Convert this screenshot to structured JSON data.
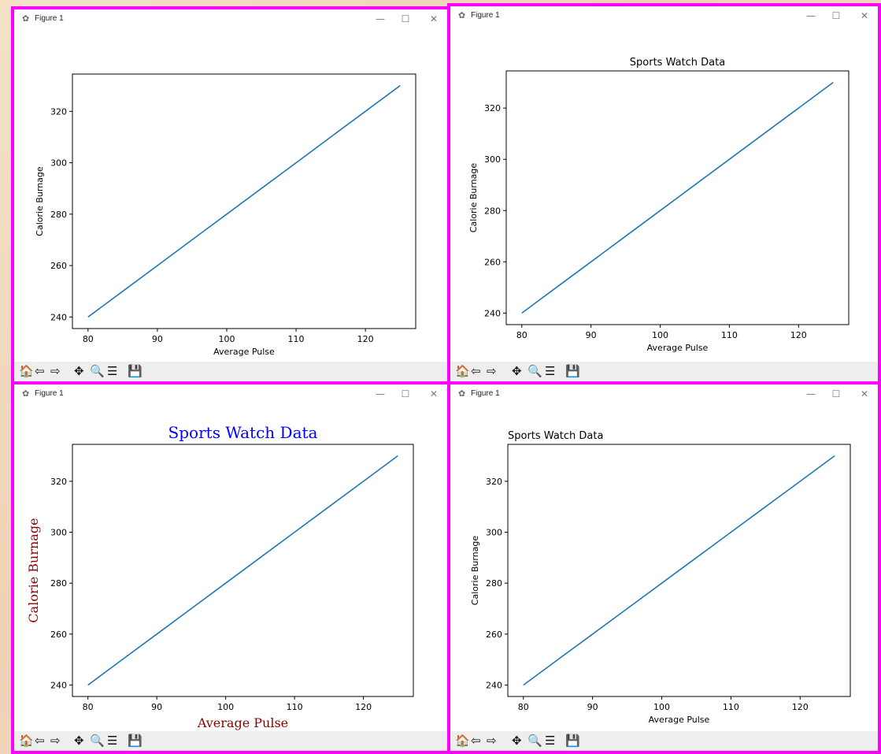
{
  "colors": {
    "frame": "#ff00ff",
    "line": "#1f77b4",
    "toolbar_bg": "#eeeeee",
    "title_blue": "#0000ff",
    "label_darkred": "#8b0000"
  },
  "icons": {
    "app": "matplotlib-figure-icon",
    "minimize": "minimize-icon",
    "maximize": "maximize-icon",
    "close": "close-icon",
    "toolbar": [
      "home-icon",
      "back-arrow-icon",
      "forward-arrow-icon",
      "pan-move-icon",
      "zoom-magnifier-icon",
      "configure-subplots-icon",
      "save-floppy-icon"
    ]
  },
  "windows": [
    {
      "title": "Figure 1",
      "controls": {
        "minimize": "—",
        "maximize": "☐",
        "close": "✕"
      },
      "toolbar": {
        "home": "🏠",
        "back": "⇦",
        "forward": "⇨",
        "pan": "✥",
        "zoom": "🔍",
        "config": "☰",
        "save": "💾"
      }
    },
    {
      "title": "Figure 1",
      "controls": {
        "minimize": "—",
        "maximize": "☐",
        "close": "✕"
      },
      "toolbar": {
        "home": "🏠",
        "back": "⇦",
        "forward": "⇨",
        "pan": "✥",
        "zoom": "🔍",
        "config": "☰",
        "save": "💾"
      }
    },
    {
      "title": "Figure 1",
      "controls": {
        "minimize": "—",
        "maximize": "☐",
        "close": "✕"
      },
      "toolbar": {
        "home": "🏠",
        "back": "⇦",
        "forward": "⇨",
        "pan": "✥",
        "zoom": "🔍",
        "config": "☰",
        "save": "💾"
      }
    },
    {
      "title": "Figure 1",
      "controls": {
        "minimize": "—",
        "maximize": "☐",
        "close": "✕"
      },
      "toolbar": {
        "home": "🏠",
        "back": "⇦",
        "forward": "⇨",
        "pan": "✥",
        "zoom": "🔍",
        "config": "☰",
        "save": "💾"
      }
    }
  ],
  "chart_data": [
    {
      "type": "line",
      "title": "",
      "xlabel": "Average Pulse",
      "ylabel": "Calorie Burnage",
      "x": [
        80,
        85,
        90,
        95,
        100,
        105,
        110,
        115,
        120,
        125
      ],
      "series": [
        {
          "values": [
            240,
            250,
            260,
            270,
            280,
            290,
            300,
            310,
            320,
            330
          ]
        }
      ],
      "xlim": [
        77.75,
        127.25
      ],
      "ylim": [
        235.5,
        334.5
      ],
      "xticks": [
        "80",
        "90",
        "100",
        "110",
        "120"
      ],
      "yticks": [
        "240",
        "260",
        "280",
        "300",
        "320"
      ],
      "title_align": "center",
      "style": "default",
      "grid": false
    },
    {
      "type": "line",
      "title": "Sports Watch Data",
      "xlabel": "Average Pulse",
      "ylabel": "Calorie Burnage",
      "x": [
        80,
        85,
        90,
        95,
        100,
        105,
        110,
        115,
        120,
        125
      ],
      "series": [
        {
          "values": [
            240,
            250,
            260,
            270,
            280,
            290,
            300,
            310,
            320,
            330
          ]
        }
      ],
      "xlim": [
        77.75,
        127.25
      ],
      "ylim": [
        235.5,
        334.5
      ],
      "xticks": [
        "80",
        "90",
        "100",
        "110",
        "120"
      ],
      "yticks": [
        "240",
        "260",
        "280",
        "300",
        "320"
      ],
      "title_align": "center",
      "style": "default",
      "grid": false
    },
    {
      "type": "line",
      "title": "Sports Watch Data",
      "xlabel": "Average Pulse",
      "ylabel": "Calorie Burnage",
      "x": [
        80,
        85,
        90,
        95,
        100,
        105,
        110,
        115,
        120,
        125
      ],
      "series": [
        {
          "values": [
            240,
            250,
            260,
            270,
            280,
            290,
            300,
            310,
            320,
            330
          ]
        }
      ],
      "xlim": [
        77.75,
        127.25
      ],
      "ylim": [
        235.5,
        334.5
      ],
      "xticks": [
        "80",
        "90",
        "100",
        "110",
        "120"
      ],
      "yticks": [
        "240",
        "260",
        "280",
        "300",
        "320"
      ],
      "title_align": "center",
      "style": "serif-colored",
      "grid": false
    },
    {
      "type": "line",
      "title": "Sports Watch Data",
      "xlabel": "Average Pulse",
      "ylabel": "Calorie Burnage",
      "x": [
        80,
        85,
        90,
        95,
        100,
        105,
        110,
        115,
        120,
        125
      ],
      "series": [
        {
          "values": [
            240,
            250,
            260,
            270,
            280,
            290,
            300,
            310,
            320,
            330
          ]
        }
      ],
      "xlim": [
        77.75,
        127.25
      ],
      "ylim": [
        235.5,
        334.5
      ],
      "xticks": [
        "80",
        "90",
        "100",
        "110",
        "120"
      ],
      "yticks": [
        "240",
        "260",
        "280",
        "300",
        "320"
      ],
      "title_align": "left",
      "style": "default",
      "grid": false
    }
  ]
}
